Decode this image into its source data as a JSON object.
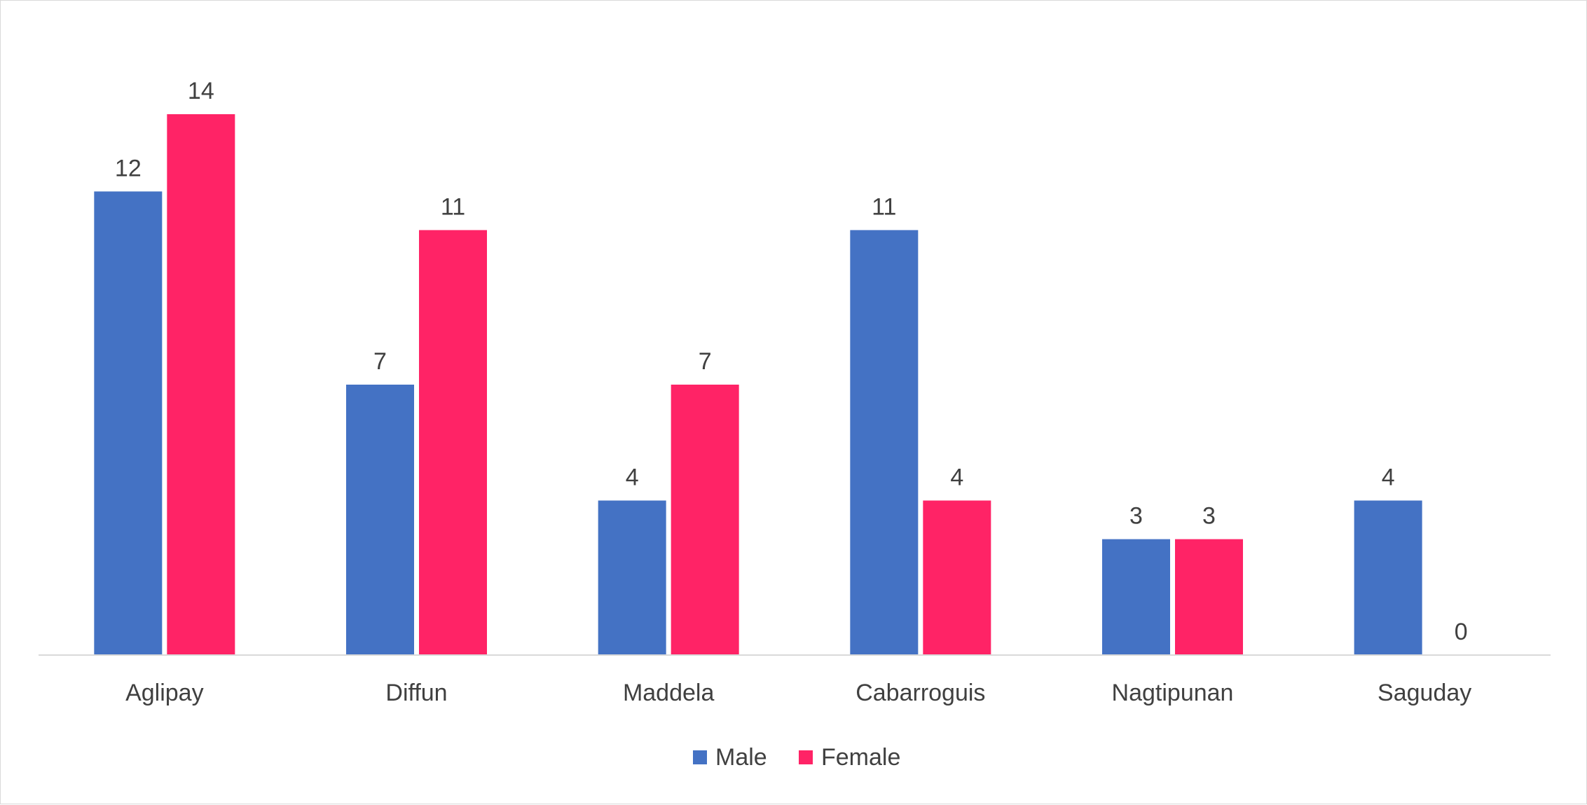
{
  "chart_data": {
    "type": "bar",
    "categories": [
      "Aglipay",
      "Diffun",
      "Maddela",
      "Cabarroguis",
      "Nagtipunan",
      "Saguday"
    ],
    "series": [
      {
        "name": "Male",
        "values": [
          12,
          7,
          4,
          11,
          3,
          4
        ],
        "color": "#4472C4"
      },
      {
        "name": "Female",
        "values": [
          14,
          11,
          7,
          4,
          3,
          0
        ],
        "color": "#FF2366"
      }
    ],
    "ylim": [
      0,
      14
    ],
    "grid": false,
    "legend": "bottom",
    "data_labels": true
  }
}
